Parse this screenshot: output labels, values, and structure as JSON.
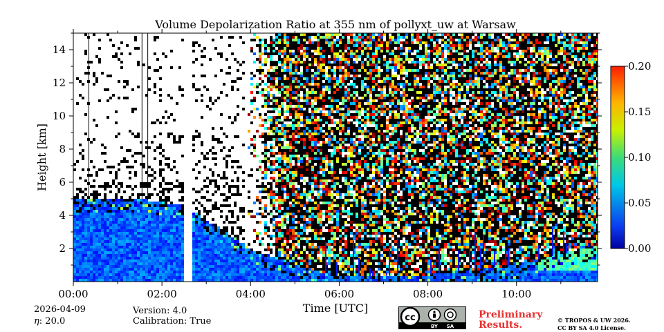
{
  "chart_data": {
    "type": "heatmap",
    "title": "Volume Depolarization Ratio at 355 nm of pollyxt_uw at Warsaw",
    "xlabel": "Time [UTC]",
    "ylabel": "Height [km]",
    "x_unit": "hours UTC",
    "xlim": [
      0,
      11.83
    ],
    "ylim": [
      0,
      15
    ],
    "x_ticks": [
      0,
      2,
      4,
      6,
      8,
      10
    ],
    "x_tick_labels": [
      "00:00",
      "02:00",
      "04:00",
      "06:00",
      "08:00",
      "10:00"
    ],
    "y_ticks": [
      2,
      4,
      6,
      8,
      10,
      12,
      14
    ],
    "y_tick_labels": [
      "2",
      "4",
      "6",
      "8",
      "10",
      "12",
      "14"
    ],
    "colorbar": {
      "range": [
        0.0,
        0.2
      ],
      "ticks": [
        0.0,
        0.05,
        0.1,
        0.15,
        0.2
      ],
      "tick_labels": [
        "0.00",
        "0.05",
        "0.10",
        "0.15",
        "0.20"
      ],
      "colormap": "jet"
    },
    "data_gaps_hours": [
      [
        2.5,
        2.68
      ]
    ],
    "vertical_lines_hours": [
      0.35,
      1.55,
      1.68
    ],
    "layers": [
      {
        "name": "boundary layer aerosol",
        "depol_approx": 0.02,
        "top_km": [
          5.0,
          5.0,
          4.6,
          2.0,
          1.0,
          0.3,
          0.4,
          1.0,
          2.2
        ]
      }
    ]
  },
  "footer": {
    "date": "2026-04-09",
    "eta_prefix": "η",
    "eta_value": ": 20.0",
    "version": "Version: 4.0",
    "calibration": "Calibration: True",
    "cc_texts": [
      "cc",
      "BY",
      "SA"
    ],
    "preliminary_line1": "Preliminary",
    "preliminary_line2": "Results.",
    "copyright_line1": "© TROPOS & UW 2026.",
    "copyright_line2": "CC BY SA 4.0 License."
  },
  "colors": {
    "preliminary": "#e8312f",
    "low_depol": "#1560d8",
    "cc_badge_bg": "#aab2ab"
  }
}
